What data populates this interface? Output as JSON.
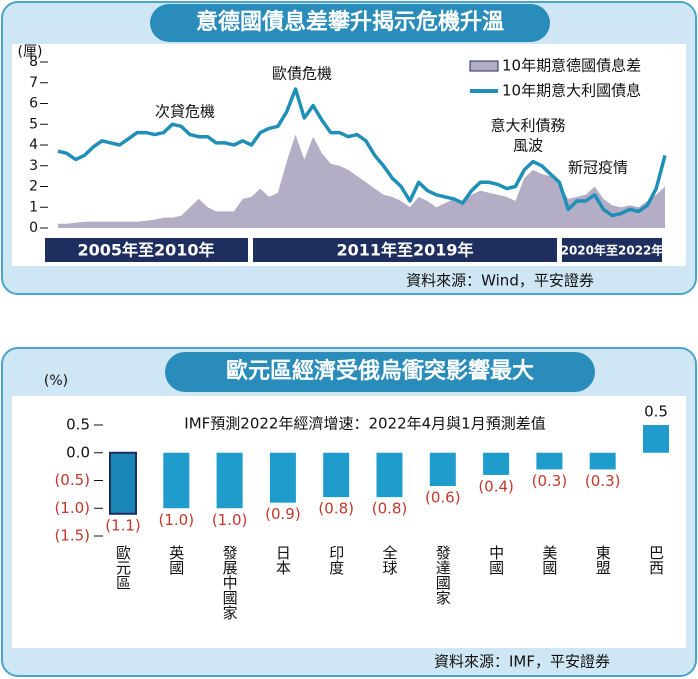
{
  "chart_data": [
    {
      "type": "line",
      "title": "意德國債息差攀升揭示危機升溫",
      "y_label": "(厘)",
      "categories": [
        null,
        null,
        null,
        null,
        null,
        null,
        null,
        null,
        null,
        null,
        null,
        null,
        null,
        null,
        null,
        null,
        null,
        null,
        null,
        null,
        null,
        null,
        null,
        null,
        null,
        null,
        null,
        null,
        null,
        null,
        null,
        null,
        null,
        null,
        null,
        null,
        null,
        null,
        null,
        null,
        null,
        null,
        null,
        null,
        null,
        null,
        null,
        null,
        null,
        null,
        null,
        null,
        null,
        null,
        null,
        null,
        null,
        null,
        null,
        null,
        null,
        null,
        null,
        null,
        null,
        null,
        null,
        null,
        null,
        null
      ],
      "series": [
        {
          "name": "10年期意德國債息差",
          "color": "#b3adc6",
          "fill": true,
          "values": [
            0.2,
            0.2,
            0.25,
            0.3,
            0.3,
            0.3,
            0.3,
            0.3,
            0.3,
            0.3,
            0.35,
            0.4,
            0.5,
            0.5,
            0.6,
            1.0,
            1.4,
            1.0,
            0.8,
            0.8,
            0.8,
            1.4,
            1.5,
            1.9,
            1.5,
            1.7,
            3.2,
            4.5,
            3.3,
            4.4,
            3.6,
            3.1,
            3.0,
            2.8,
            2.5,
            2.2,
            1.9,
            1.6,
            1.5,
            1.3,
            1.0,
            1.5,
            1.3,
            1.0,
            1.2,
            1.4,
            1.2,
            1.6,
            1.8,
            1.7,
            1.6,
            1.5,
            1.3,
            2.4,
            2.8,
            2.6,
            2.5,
            2.1,
            1.4,
            1.5,
            1.6,
            2.0,
            1.4,
            1.1,
            1.0,
            1.1,
            1.0,
            1.3,
            1.6,
            2.0
          ]
        },
        {
          "name": "10年期意大利國債息",
          "color": "#1f8fb8",
          "fill": false,
          "values": [
            3.7,
            3.6,
            3.3,
            3.5,
            3.9,
            4.2,
            4.1,
            4.0,
            4.3,
            4.6,
            4.6,
            4.5,
            4.6,
            5.0,
            4.9,
            4.5,
            4.4,
            4.4,
            4.1,
            4.1,
            4.0,
            4.2,
            4.0,
            4.6,
            4.8,
            4.9,
            5.6,
            6.7,
            5.3,
            5.9,
            5.2,
            4.6,
            4.6,
            4.4,
            4.5,
            4.2,
            3.5,
            3.0,
            2.4,
            2.0,
            1.3,
            2.2,
            1.8,
            1.6,
            1.5,
            1.4,
            1.2,
            1.8,
            2.2,
            2.2,
            2.1,
            1.9,
            2.0,
            2.8,
            3.2,
            3.0,
            2.6,
            2.2,
            0.9,
            1.3,
            1.3,
            1.6,
            0.9,
            0.6,
            0.7,
            0.9,
            0.8,
            1.1,
            1.9,
            3.5
          ]
        }
      ],
      "ylim": [
        0,
        8
      ],
      "yticks": [
        0,
        1,
        2,
        3,
        4,
        5,
        6,
        7,
        8
      ],
      "annotations": [
        "次貸危機",
        "歐債危機",
        "意大利債務",
        "風波",
        "新冠疫情"
      ],
      "periods": [
        "2005年至2010年",
        "2011年至2019年",
        "2020年至2022年"
      ],
      "source": "資料來源：Wind，平安證券"
    },
    {
      "type": "bar",
      "title": "歐元區經濟受俄烏衝突影響最大",
      "subtitle": "IMF預測2022年經濟增速：2022年4月與1月預測差值",
      "y_label": "(%)",
      "categories": [
        "歐元區",
        "英國",
        "發展中國家",
        "日本",
        "印度",
        "全球",
        "發達國家",
        "中國",
        "美國",
        "東盟",
        "巴西"
      ],
      "values": [
        -1.1,
        -1.0,
        -1.0,
        -0.9,
        -0.8,
        -0.8,
        -0.6,
        -0.4,
        -0.3,
        -0.3,
        0.5
      ],
      "value_labels": [
        "(1.1)",
        "(1.0)",
        "(1.0)",
        "(0.9)",
        "(0.8)",
        "(0.8)",
        "(0.6)",
        "(0.4)",
        "(0.3)",
        "(0.3)",
        "0.5"
      ],
      "colors": [
        "#1a86b5",
        "#1f9ccc",
        "#1f9ccc",
        "#1f9ccc",
        "#1f9ccc",
        "#1f9ccc",
        "#1f9ccc",
        "#1f9ccc",
        "#1f9ccc",
        "#1f9ccc",
        "#1f9ccc"
      ],
      "ylim": [
        -1.5,
        0.5
      ],
      "yticks": [
        0.5,
        {
          "value": 0,
          "label": "0.0"
        },
        {
          "value": -0.5,
          "label": "(0.5)"
        },
        {
          "value": -1,
          "label": "(1.0)"
        },
        {
          "value": -1.5,
          "label": "(1.5)"
        }
      ],
      "source": "資料來源：IMF，平安證券"
    }
  ]
}
